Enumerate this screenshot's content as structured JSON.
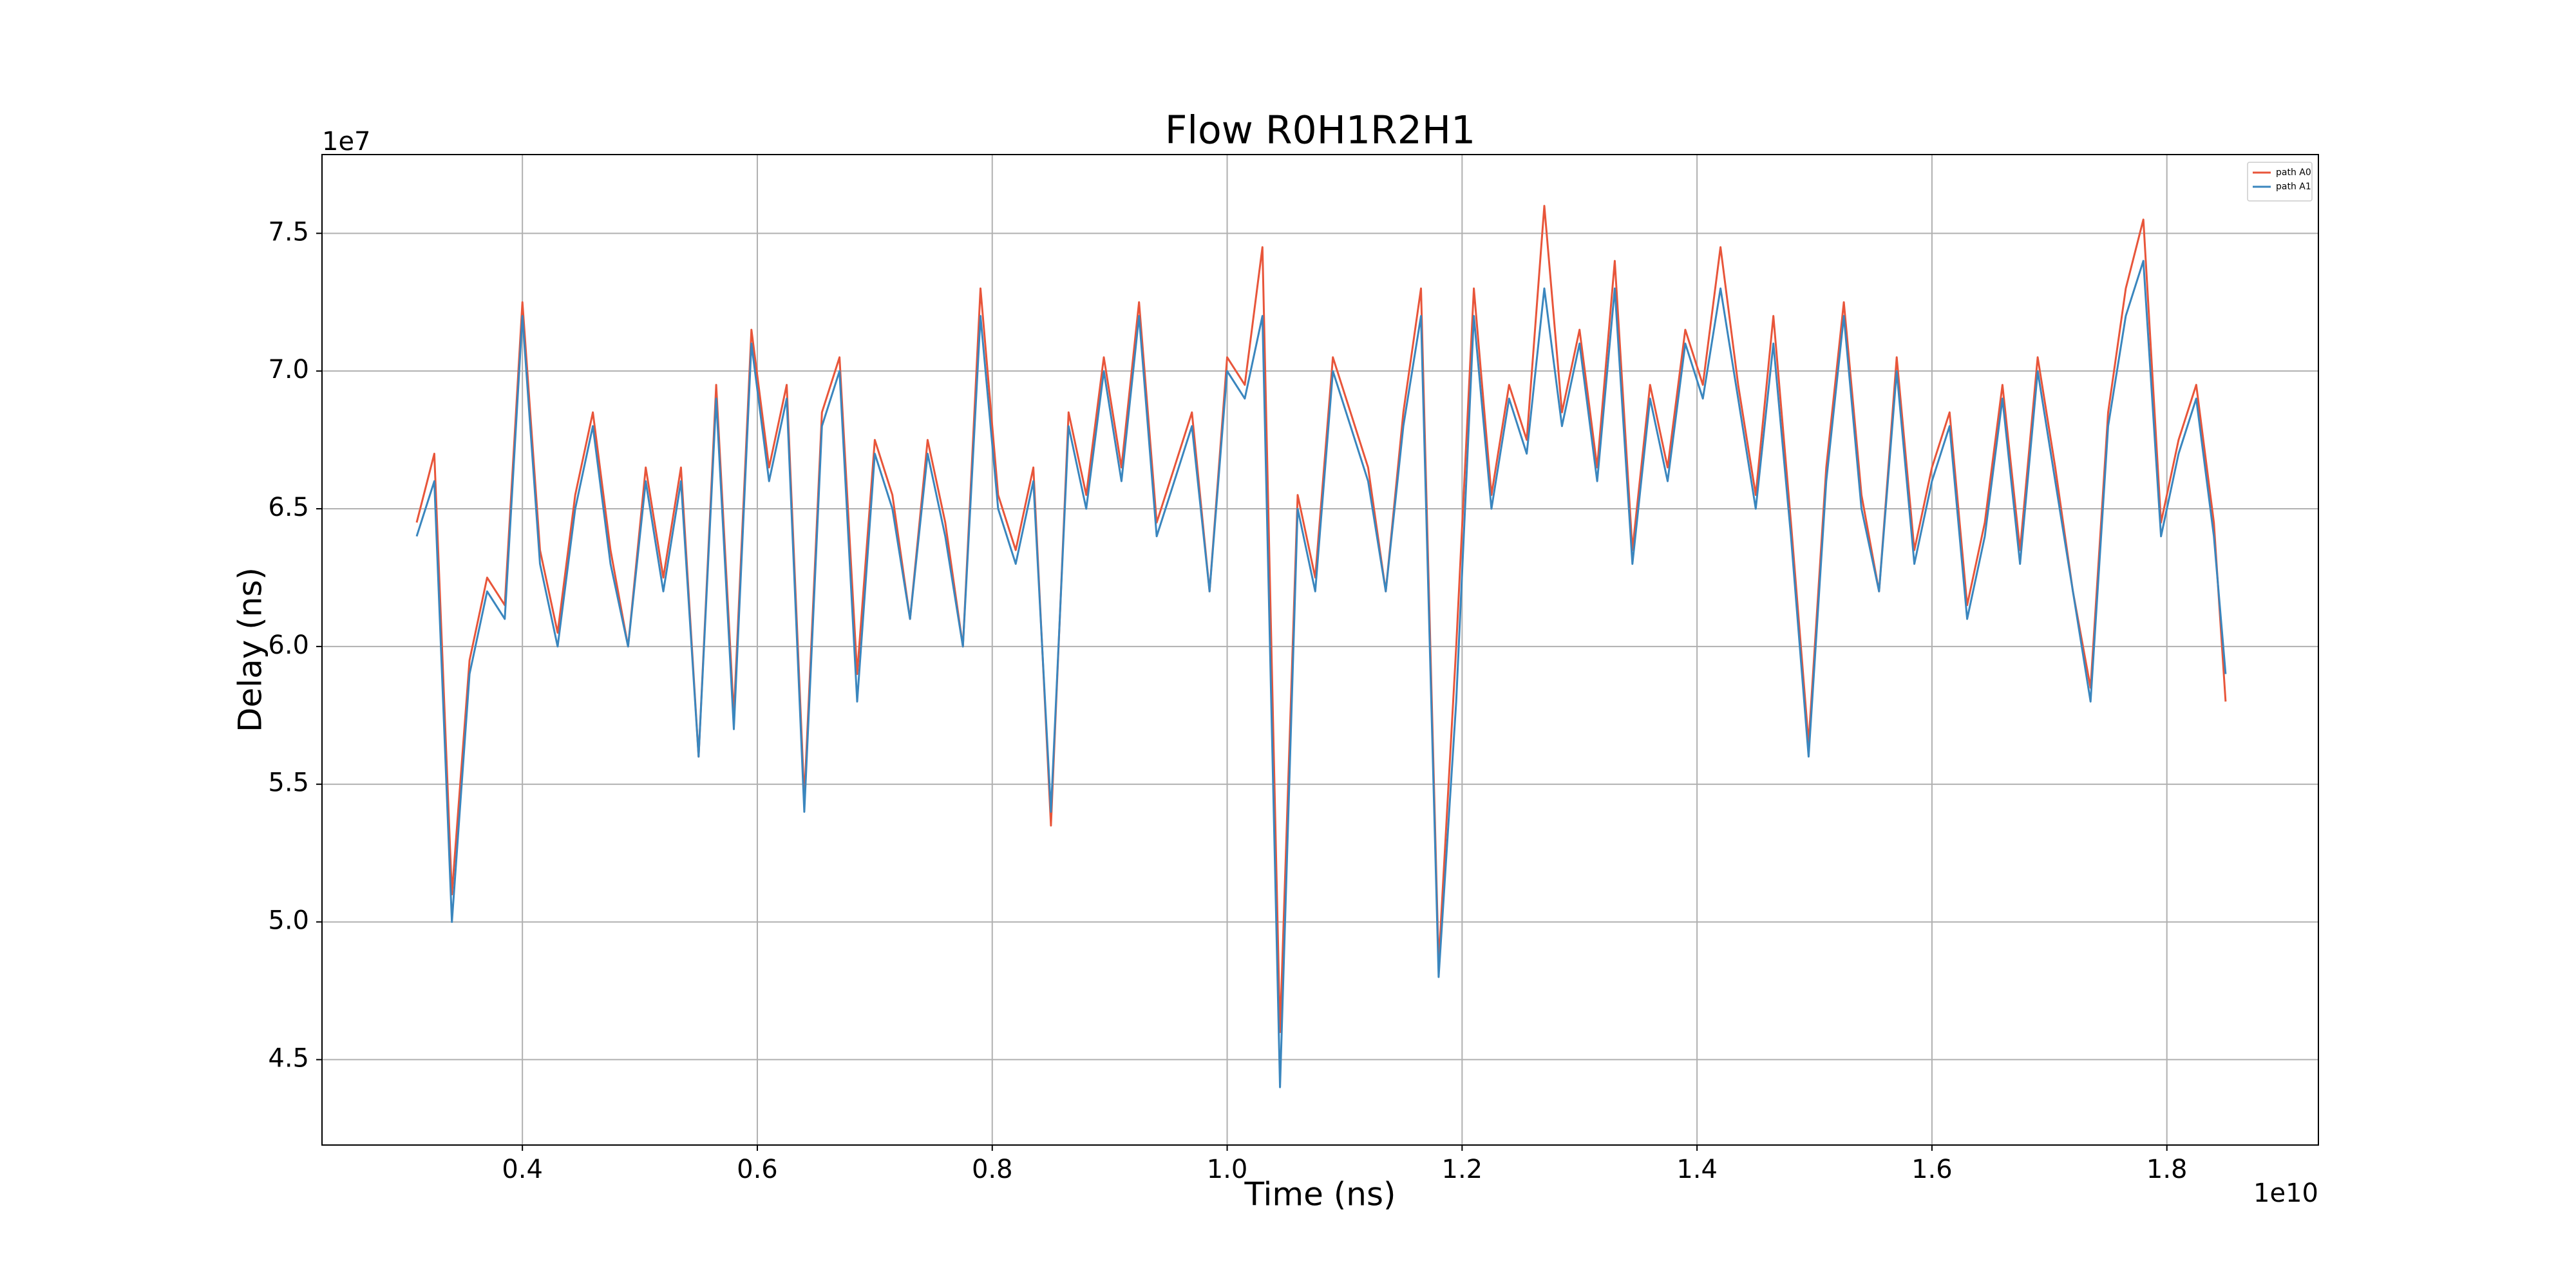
{
  "chart_data": {
    "type": "line",
    "title": "Flow R0H1R2H1",
    "x_label": "Time (ns)",
    "y_label": "Delay (ns)",
    "x_offset_label": "1e10",
    "y_offset_label": "1e7",
    "xlim": [
      2294000000.0,
      19290000000.0
    ],
    "ylim": [
      41900000.0,
      77860000.0
    ],
    "xticks": [
      {
        "value": 4000000000.0,
        "label": "0.4"
      },
      {
        "value": 6000000000.0,
        "label": "0.6"
      },
      {
        "value": 8000000000.0,
        "label": "0.8"
      },
      {
        "value": 10000000000.0,
        "label": "1.0"
      },
      {
        "value": 12000000000.0,
        "label": "1.2"
      },
      {
        "value": 14000000000.0,
        "label": "1.4"
      },
      {
        "value": 16000000000.0,
        "label": "1.6"
      },
      {
        "value": 18000000000.0,
        "label": "1.8"
      }
    ],
    "yticks": [
      {
        "value": 45000000.0,
        "label": "4.5"
      },
      {
        "value": 50000000.0,
        "label": "5.0"
      },
      {
        "value": 55000000.0,
        "label": "5.5"
      },
      {
        "value": 60000000.0,
        "label": "6.0"
      },
      {
        "value": 65000000.0,
        "label": "6.5"
      },
      {
        "value": 70000000.0,
        "label": "7.0"
      },
      {
        "value": 75000000.0,
        "label": "7.5"
      }
    ],
    "grid": true,
    "legend": "upper right",
    "x": [
      3100000000.0,
      3250000000.0,
      3400000000.0,
      3550000000.0,
      3700000000.0,
      3850000000.0,
      4000000000.0,
      4150000000.0,
      4300000000.0,
      4450000000.0,
      4600000000.0,
      4750000000.0,
      4900000000.0,
      5050000000.0,
      5200000000.0,
      5350000000.0,
      5500000000.0,
      5650000000.0,
      5800000000.0,
      5950000000.0,
      6100000000.0,
      6250000000.0,
      6400000000.0,
      6550000000.0,
      6700000000.0,
      6850000000.0,
      7000000000.0,
      7150000000.0,
      7300000000.0,
      7450000000.0,
      7600000000.0,
      7750000000.0,
      7900000000.0,
      8050000000.0,
      8200000000.0,
      8350000000.0,
      8500000000.0,
      8650000000.0,
      8800000000.0,
      8950000000.0,
      9100000000.0,
      9250000000.0,
      9400000000.0,
      9550000000.0,
      9700000000.0,
      9850000000.0,
      10000000000.0,
      10150000000.0,
      10300000000.0,
      10450000000.0,
      10600000000.0,
      10750000000.0,
      10900000000.0,
      11050000000.0,
      11200000000.0,
      11350000000.0,
      11500000000.0,
      11650000000.0,
      11800000000.0,
      11950000000.0,
      12100000000.0,
      12250000000.0,
      12400000000.0,
      12550000000.0,
      12700000000.0,
      12850000000.0,
      13000000000.0,
      13150000000.0,
      13300000000.0,
      13450000000.0,
      13600000000.0,
      13750000000.0,
      13900000000.0,
      14050000000.0,
      14200000000.0,
      14350000000.0,
      14500000000.0,
      14650000000.0,
      14800000000.0,
      14950000000.0,
      15100000000.0,
      15250000000.0,
      15400000000.0,
      15550000000.0,
      15700000000.0,
      15850000000.0,
      16000000000.0,
      16150000000.0,
      16300000000.0,
      16450000000.0,
      16600000000.0,
      16750000000.0,
      16900000000.0,
      17050000000.0,
      17200000000.0,
      17350000000.0,
      17500000000.0,
      17650000000.0,
      17800000000.0,
      17950000000.0,
      18100000000.0,
      18250000000.0,
      18400000000.0,
      18500000000.0
    ],
    "series": [
      {
        "name": "path A0",
        "color": "#e8553a",
        "values": [
          64500000.0,
          67000000.0,
          51000000.0,
          59500000.0,
          62500000.0,
          61500000.0,
          72500000.0,
          63500000.0,
          60500000.0,
          65500000.0,
          68500000.0,
          63500000.0,
          60000000.0,
          66500000.0,
          62500000.0,
          66500000.0,
          56000000.0,
          69500000.0,
          57500000.0,
          71500000.0,
          66500000.0,
          69500000.0,
          54500000.0,
          68500000.0,
          70500000.0,
          59000000.0,
          67500000.0,
          65500000.0,
          61000000.0,
          67500000.0,
          64500000.0,
          60000000.0,
          73000000.0,
          65500000.0,
          63500000.0,
          66500000.0,
          53500000.0,
          68500000.0,
          65500000.0,
          70500000.0,
          66500000.0,
          72500000.0,
          64500000.0,
          66500000.0,
          68500000.0,
          62000000.0,
          70500000.0,
          69500000.0,
          74500000.0,
          46000000.0,
          65500000.0,
          62500000.0,
          70500000.0,
          68500000.0,
          66500000.0,
          62000000.0,
          68500000.0,
          73000000.0,
          48500000.0,
          60000000.0,
          73000000.0,
          65500000.0,
          69500000.0,
          67500000.0,
          76000000.0,
          68500000.0,
          71500000.0,
          66500000.0,
          74000000.0,
          63500000.0,
          69500000.0,
          66500000.0,
          71500000.0,
          69500000.0,
          74500000.0,
          69500000.0,
          65500000.0,
          72000000.0,
          64500000.0,
          56500000.0,
          66500000.0,
          72500000.0,
          65500000.0,
          62000000.0,
          70500000.0,
          63500000.0,
          66500000.0,
          68500000.0,
          61500000.0,
          64500000.0,
          69500000.0,
          63500000.0,
          70500000.0,
          66500000.0,
          62000000.0,
          58500000.0,
          68500000.0,
          73000000.0,
          75500000.0,
          64500000.0,
          67500000.0,
          69500000.0,
          64500000.0,
          58000000.0
        ]
      },
      {
        "name": "path A1",
        "color": "#3a86be",
        "values": [
          64000000.0,
          66000000.0,
          50000000.0,
          59000000.0,
          62000000.0,
          61000000.0,
          72000000.0,
          63000000.0,
          60000000.0,
          65000000.0,
          68000000.0,
          63000000.0,
          60000000.0,
          66000000.0,
          62000000.0,
          66000000.0,
          56000000.0,
          69000000.0,
          57000000.0,
          71000000.0,
          66000000.0,
          69000000.0,
          54000000.0,
          68000000.0,
          70000000.0,
          58000000.0,
          67000000.0,
          65000000.0,
          61000000.0,
          67000000.0,
          64000000.0,
          60000000.0,
          72000000.0,
          65000000.0,
          63000000.0,
          66000000.0,
          54000000.0,
          68000000.0,
          65000000.0,
          70000000.0,
          66000000.0,
          72000000.0,
          64000000.0,
          66000000.0,
          68000000.0,
          62000000.0,
          70000000.0,
          69000000.0,
          72000000.0,
          44000000.0,
          65000000.0,
          62000000.0,
          70000000.0,
          68000000.0,
          66000000.0,
          62000000.0,
          68000000.0,
          72000000.0,
          48000000.0,
          58000000.0,
          72000000.0,
          65000000.0,
          69000000.0,
          67000000.0,
          73000000.0,
          68000000.0,
          71000000.0,
          66000000.0,
          73000000.0,
          63000000.0,
          69000000.0,
          66000000.0,
          71000000.0,
          69000000.0,
          73000000.0,
          69000000.0,
          65000000.0,
          71000000.0,
          64000000.0,
          56000000.0,
          66000000.0,
          72000000.0,
          65000000.0,
          62000000.0,
          70000000.0,
          63000000.0,
          66000000.0,
          68000000.0,
          61000000.0,
          64000000.0,
          69000000.0,
          63000000.0,
          70000000.0,
          66000000.0,
          62000000.0,
          58000000.0,
          68000000.0,
          72000000.0,
          74000000.0,
          64000000.0,
          67000000.0,
          69000000.0,
          64000000.0,
          59000000.0
        ]
      }
    ]
  }
}
